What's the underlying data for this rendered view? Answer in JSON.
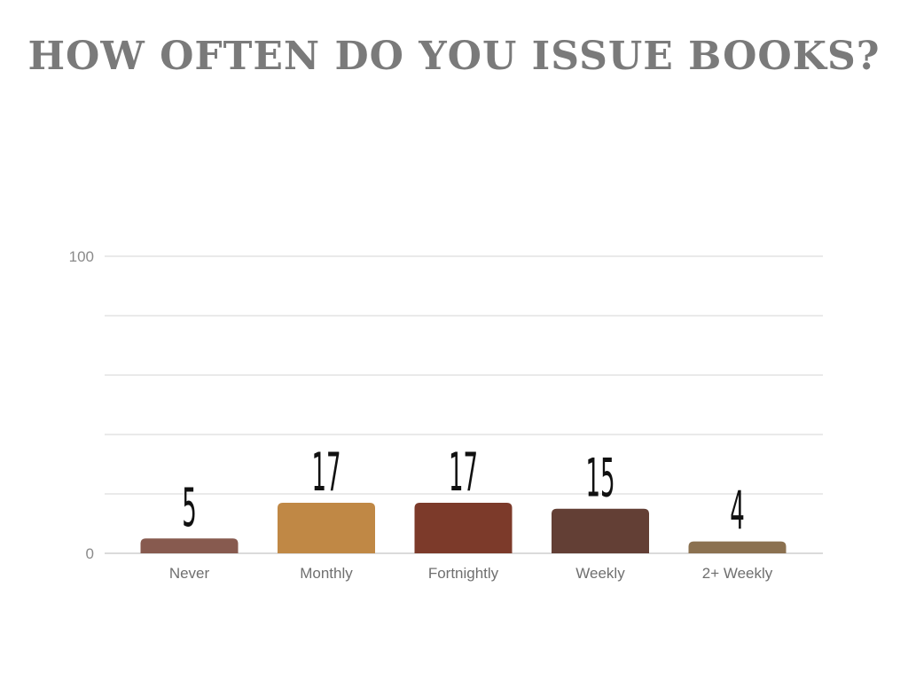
{
  "chart_data": {
    "type": "bar",
    "title": "HOW OFTEN DO YOU ISSUE BOOKS?",
    "categories": [
      "Never",
      "Monthly",
      "Fortnightly",
      "Weekly",
      "2+ Weekly"
    ],
    "values": [
      5,
      17,
      17,
      15,
      4
    ],
    "value_labels": [
      "5",
      "17",
      "17",
      "15",
      "4"
    ],
    "colors": [
      "#875a4f",
      "#c08845",
      "#7c3a2a",
      "#633f35",
      "#8b7150"
    ],
    "ylim": [
      0,
      100
    ],
    "yticks": [
      0,
      100
    ],
    "ytick_labels": [
      "0",
      "100"
    ],
    "gridlines": [
      0,
      20,
      40,
      60,
      80,
      100
    ],
    "grid": true,
    "xlabel": "",
    "ylabel": ""
  }
}
